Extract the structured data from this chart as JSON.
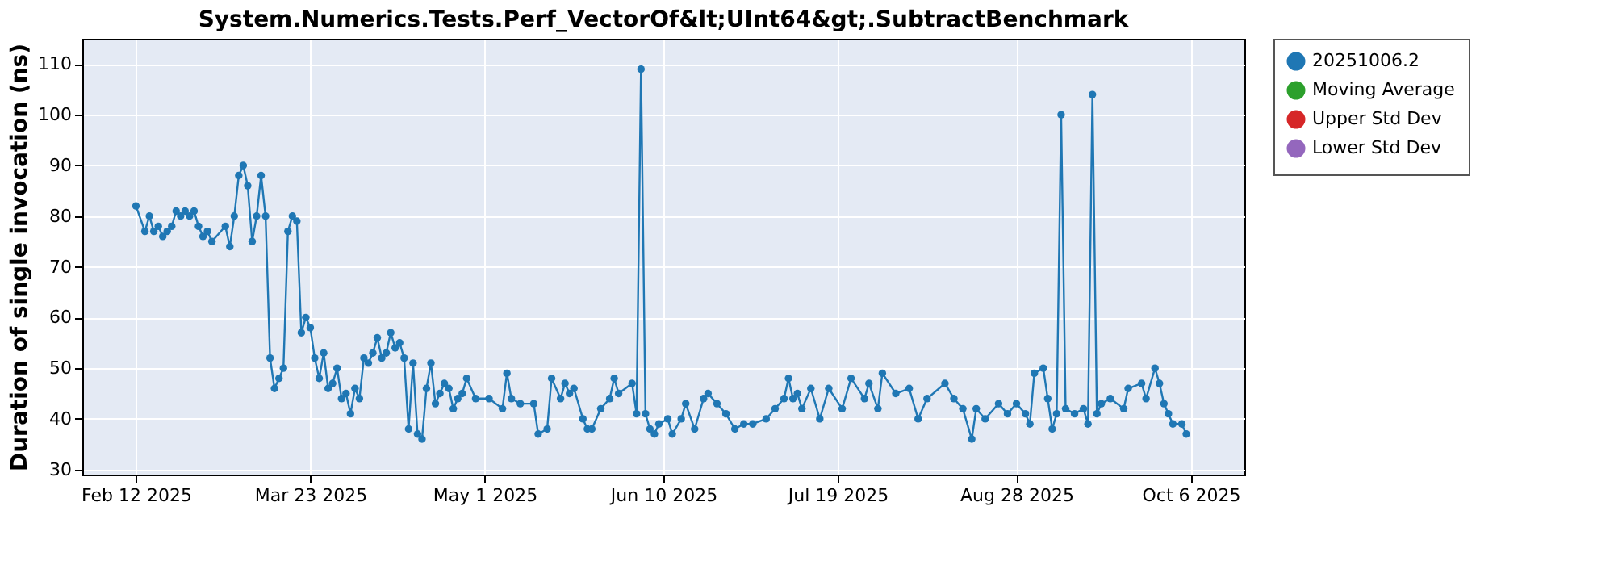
{
  "chart_data": {
    "type": "line",
    "title": "System.Numerics.Tests.Perf_VectorOf&lt;UInt64&gt;.SubtractBenchmark",
    "ylabel": "Duration of single invocation (ns)",
    "xlim": [
      "2025-01-31",
      "2025-10-18"
    ],
    "xticks": [
      {
        "value": "2025-02-12",
        "label": "Feb 12 2025"
      },
      {
        "value": "2025-03-23",
        "label": "Mar 23 2025"
      },
      {
        "value": "2025-05-01",
        "label": "May 1 2025"
      },
      {
        "value": "2025-06-10",
        "label": "Jun 10 2025"
      },
      {
        "value": "2025-07-19",
        "label": "Jul 19 2025"
      },
      {
        "value": "2025-08-28",
        "label": "Aug 28 2025"
      },
      {
        "value": "2025-10-06",
        "label": "Oct 6 2025"
      }
    ],
    "ylim": [
      29,
      115
    ],
    "yticks": [
      30,
      40,
      50,
      60,
      70,
      80,
      90,
      100,
      110
    ],
    "grid": true,
    "legend": "right",
    "marker": "circle",
    "line_style": "solid",
    "series": [
      {
        "name": "20251006.2",
        "color": "#1f77b4",
        "x": [
          "2025-02-12",
          "2025-02-14",
          "2025-02-15",
          "2025-02-16",
          "2025-02-17",
          "2025-02-18",
          "2025-02-19",
          "2025-02-20",
          "2025-02-21",
          "2025-02-22",
          "2025-02-23",
          "2025-02-24",
          "2025-02-25",
          "2025-02-26",
          "2025-02-27",
          "2025-02-28",
          "2025-03-01",
          "2025-03-04",
          "2025-03-05",
          "2025-03-06",
          "2025-03-07",
          "2025-03-08",
          "2025-03-09",
          "2025-03-10",
          "2025-03-11",
          "2025-03-12",
          "2025-03-13",
          "2025-03-14",
          "2025-03-15",
          "2025-03-16",
          "2025-03-17",
          "2025-03-18",
          "2025-03-19",
          "2025-03-20",
          "2025-03-21",
          "2025-03-22",
          "2025-03-23",
          "2025-03-24",
          "2025-03-25",
          "2025-03-26",
          "2025-03-27",
          "2025-03-28",
          "2025-03-29",
          "2025-03-30",
          "2025-03-31",
          "2025-04-01",
          "2025-04-02",
          "2025-04-03",
          "2025-04-04",
          "2025-04-05",
          "2025-04-06",
          "2025-04-07",
          "2025-04-08",
          "2025-04-09",
          "2025-04-10",
          "2025-04-11",
          "2025-04-12",
          "2025-04-13",
          "2025-04-14",
          "2025-04-15",
          "2025-04-16",
          "2025-04-17",
          "2025-04-18",
          "2025-04-19",
          "2025-04-20",
          "2025-04-21",
          "2025-04-22",
          "2025-04-23",
          "2025-04-24",
          "2025-04-25",
          "2025-04-26",
          "2025-04-27",
          "2025-04-29",
          "2025-05-02",
          "2025-05-05",
          "2025-05-06",
          "2025-05-07",
          "2025-05-09",
          "2025-05-12",
          "2025-05-13",
          "2025-05-15",
          "2025-05-16",
          "2025-05-18",
          "2025-05-19",
          "2025-05-20",
          "2025-05-21",
          "2025-05-23",
          "2025-05-24",
          "2025-05-25",
          "2025-05-27",
          "2025-05-29",
          "2025-05-30",
          "2025-05-31",
          "2025-06-03",
          "2025-06-04",
          "2025-06-05",
          "2025-06-06",
          "2025-06-07",
          "2025-06-08",
          "2025-06-09",
          "2025-06-11",
          "2025-06-12",
          "2025-06-14",
          "2025-06-15",
          "2025-06-17",
          "2025-06-19",
          "2025-06-20",
          "2025-06-22",
          "2025-06-24",
          "2025-06-26",
          "2025-06-28",
          "2025-06-30",
          "2025-07-03",
          "2025-07-05",
          "2025-07-07",
          "2025-07-08",
          "2025-07-09",
          "2025-07-10",
          "2025-07-11",
          "2025-07-13",
          "2025-07-15",
          "2025-07-17",
          "2025-07-20",
          "2025-07-22",
          "2025-07-25",
          "2025-07-26",
          "2025-07-28",
          "2025-07-29",
          "2025-08-01",
          "2025-08-04",
          "2025-08-06",
          "2025-08-08",
          "2025-08-12",
          "2025-08-14",
          "2025-08-16",
          "2025-08-18",
          "2025-08-19",
          "2025-08-21",
          "2025-08-24",
          "2025-08-26",
          "2025-08-28",
          "2025-08-30",
          "2025-08-31",
          "2025-09-01",
          "2025-09-03",
          "2025-09-04",
          "2025-09-05",
          "2025-09-06",
          "2025-09-07",
          "2025-09-08",
          "2025-09-10",
          "2025-09-12",
          "2025-09-13",
          "2025-09-14",
          "2025-09-15",
          "2025-09-16",
          "2025-09-18",
          "2025-09-21",
          "2025-09-22",
          "2025-09-25",
          "2025-09-26",
          "2025-09-28",
          "2025-09-29",
          "2025-09-30",
          "2025-10-01",
          "2025-10-02",
          "2025-10-04",
          "2025-10-05"
        ],
        "values": [
          82,
          77,
          80,
          77,
          78,
          76,
          77,
          78,
          81,
          80,
          81,
          80,
          81,
          78,
          76,
          77,
          75,
          78,
          74,
          80,
          88,
          90,
          86,
          75,
          80,
          88,
          80,
          52,
          46,
          48,
          50,
          77,
          80,
          79,
          57,
          60,
          58,
          52,
          48,
          53,
          46,
          47,
          50,
          44,
          45,
          41,
          46,
          44,
          52,
          51,
          53,
          56,
          52,
          53,
          57,
          54,
          55,
          52,
          38,
          51,
          37,
          36,
          46,
          51,
          43,
          45,
          47,
          46,
          42,
          44,
          45,
          48,
          44,
          44,
          42,
          49,
          44,
          43,
          43,
          37,
          38,
          48,
          44,
          47,
          45,
          46,
          40,
          38,
          38,
          42,
          44,
          48,
          45,
          47,
          41,
          109,
          41,
          38,
          37,
          39,
          40,
          37,
          40,
          43,
          38,
          44,
          45,
          43,
          41,
          38,
          39,
          39,
          40,
          42,
          44,
          48,
          44,
          45,
          42,
          46,
          40,
          46,
          42,
          48,
          44,
          47,
          42,
          49,
          45,
          46,
          40,
          44,
          47,
          44,
          42,
          36,
          42,
          40,
          43,
          41,
          43,
          41,
          39,
          49,
          50,
          44,
          38,
          41,
          100,
          42,
          41,
          42,
          39,
          104,
          41,
          43,
          44,
          42,
          46,
          47,
          44,
          50,
          47,
          43,
          41,
          39,
          39,
          37
        ]
      },
      {
        "name": "Moving Average",
        "color": "#2ca02c"
      },
      {
        "name": "Upper Std Dev",
        "color": "#d62728"
      },
      {
        "name": "Lower Std Dev",
        "color": "#9467bd"
      }
    ]
  }
}
